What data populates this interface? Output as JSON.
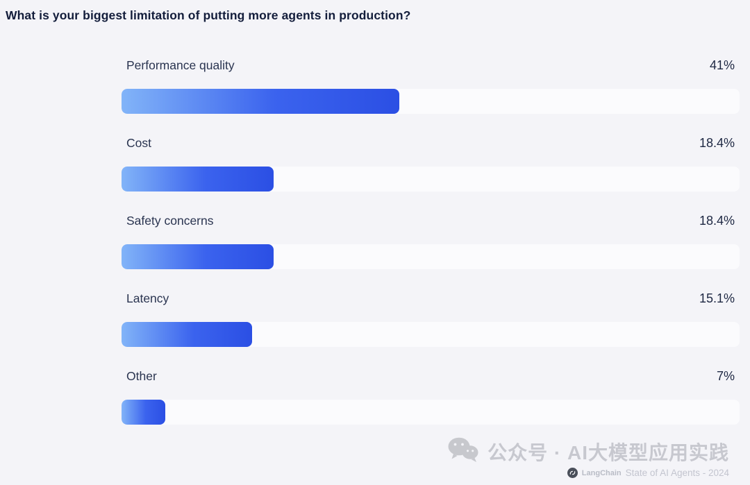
{
  "title": "What is your biggest limitation of putting more agents in production?",
  "chart_data": {
    "type": "bar",
    "orientation": "horizontal",
    "title": "What is your biggest limitation of putting more agents in production?",
    "categories": [
      "Performance quality",
      "Cost",
      "Safety concerns",
      "Latency",
      "Other"
    ],
    "values": [
      41,
      18.4,
      18.4,
      15.1,
      7
    ],
    "value_labels": [
      "41%",
      "18.4%",
      "18.4%",
      "15.1%",
      "7%"
    ],
    "xlabel": "",
    "ylabel": "",
    "xlim": [
      0,
      100
    ],
    "grid": false,
    "legend": false,
    "bar_track_fractions": [
      0.449,
      0.246,
      0.246,
      0.211,
      0.071
    ],
    "bar_gradient": [
      "#82b4f8",
      "#2b4fe4"
    ],
    "track_color": "#fbfbfd",
    "background_color": "#f4f4f8"
  },
  "watermark": {
    "icon": "wechat-icon",
    "text": "公众号 · AI大模型应用实践"
  },
  "footer": {
    "logo_icon": "langchain-logo-icon",
    "brand": "LangChain",
    "text": "State of AI Agents - 2024"
  },
  "colors": {
    "title_text": "#131d3b",
    "label_text": "#2a3450",
    "value_text": "#1d2742",
    "watermark_text": "#c7c8cf",
    "footer_text": "#c3c5cf"
  }
}
